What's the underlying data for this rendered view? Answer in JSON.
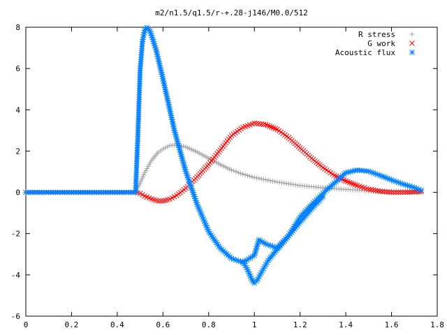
{
  "chart_data": {
    "type": "scatter",
    "title": "m2/n1.5/q1.5/r-+.28-j146/M0.0/512",
    "xlabel": "",
    "ylabel": "",
    "xlim": [
      0,
      1.8
    ],
    "ylim": [
      -6,
      8
    ],
    "xticks": [
      "0",
      "0.2",
      "0.4",
      "0.6",
      "0.8",
      "1",
      "1.2",
      "1.4",
      "1.6",
      "1.8"
    ],
    "yticks": [
      "-6",
      "-4",
      "-2",
      "0",
      "2",
      "4",
      "6",
      "8"
    ],
    "grid": false,
    "legend_position": "top-right",
    "series": [
      {
        "name": "R stress",
        "marker": "plus",
        "color": "#a0a0a0",
        "x": [
          0,
          0.1,
          0.2,
          0.3,
          0.4,
          0.48,
          0.5,
          0.52,
          0.55,
          0.58,
          0.6,
          0.63,
          0.66,
          0.7,
          0.75,
          0.8,
          0.85,
          0.9,
          0.95,
          1.0,
          1.1,
          1.2,
          1.3,
          1.4,
          1.5,
          1.6,
          1.7,
          1.73
        ],
        "y": [
          0,
          0,
          0,
          0,
          0,
          0,
          0.45,
          0.95,
          1.55,
          1.95,
          2.1,
          2.27,
          2.3,
          2.2,
          1.95,
          1.65,
          1.35,
          1.08,
          0.88,
          0.72,
          0.5,
          0.33,
          0.22,
          0.14,
          0.08,
          0.05,
          0.03,
          0.02
        ]
      },
      {
        "name": "G work",
        "marker": "cross",
        "color": "#ff0000",
        "x": [
          0,
          0.1,
          0.2,
          0.3,
          0.4,
          0.48,
          0.5,
          0.52,
          0.55,
          0.58,
          0.6,
          0.63,
          0.66,
          0.7,
          0.75,
          0.8,
          0.85,
          0.9,
          0.95,
          1.0,
          1.05,
          1.1,
          1.15,
          1.2,
          1.25,
          1.3,
          1.35,
          1.4,
          1.45,
          1.5,
          1.55,
          1.6,
          1.65,
          1.7,
          1.73
        ],
        "y": [
          0,
          0,
          0,
          0,
          0,
          0,
          -0.05,
          -0.18,
          -0.32,
          -0.42,
          -0.42,
          -0.33,
          -0.15,
          0.2,
          0.75,
          1.35,
          2.05,
          2.75,
          3.15,
          3.35,
          3.28,
          3.05,
          2.65,
          2.15,
          1.65,
          1.2,
          0.82,
          0.55,
          0.33,
          0.15,
          0.05,
          0.0,
          0.0,
          0.02,
          0.03
        ]
      },
      {
        "name": "Acoustic flux",
        "marker": "star",
        "color": "#0080ff",
        "curves": [
          {
            "x": [
              0,
              0.1,
              0.2,
              0.3,
              0.4,
              0.48,
              0.49,
              0.5,
              0.51,
              0.52,
              0.53,
              0.54,
              0.55,
              0.57,
              0.6,
              0.65,
              0.7,
              0.75,
              0.8,
              0.85,
              0.9,
              0.95,
              1.0,
              1.02,
              1.05,
              1.1,
              1.15,
              1.2,
              1.25,
              1.3,
              1.35,
              1.4,
              1.45,
              1.5,
              1.55,
              1.6,
              1.65,
              1.7,
              1.73
            ],
            "y": [
              0,
              0,
              0,
              0,
              0,
              0,
              2.7,
              5.9,
              7.3,
              7.85,
              7.98,
              7.9,
              7.6,
              6.9,
              5.5,
              3.0,
              1.0,
              -0.6,
              -1.9,
              -2.7,
              -3.2,
              -3.4,
              -3.05,
              -2.3,
              -2.5,
              -2.7,
              -2.1,
              -1.2,
              -0.6,
              -0.05,
              0.45,
              0.95,
              1.08,
              1.02,
              0.82,
              0.6,
              0.4,
              0.23,
              0.1
            ]
          },
          {
            "x": [
              0.95,
              0.97,
              0.99,
              1.0,
              1.01,
              1.03,
              1.06,
              1.1,
              1.15,
              1.2,
              1.25,
              1.3
            ],
            "y": [
              -3.35,
              -3.75,
              -4.25,
              -4.4,
              -4.3,
              -3.9,
              -3.3,
              -2.75,
              -2.1,
              -1.45,
              -0.8,
              -0.2
            ]
          }
        ]
      }
    ]
  }
}
